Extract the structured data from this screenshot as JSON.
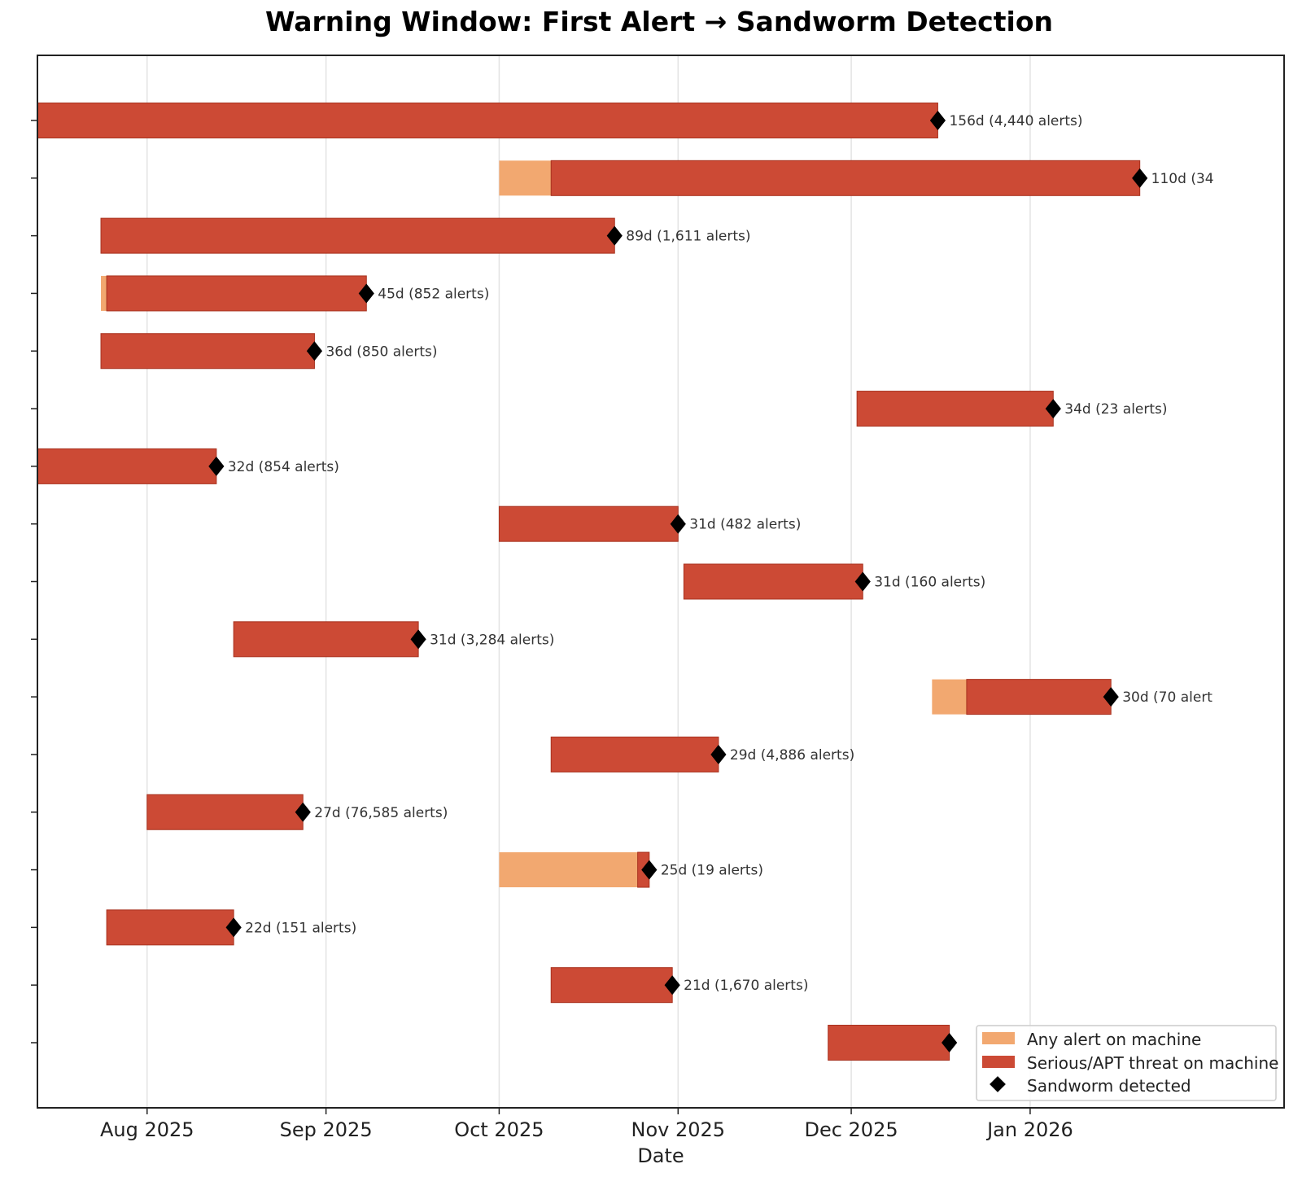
{
  "chart_data": {
    "type": "gantt",
    "title": "Warning Window: First Alert → Sandworm Detection",
    "xlabel": "Date",
    "ylabel": "",
    "xlim": [
      "2025-07-13",
      "2026-02-14"
    ],
    "x_ticks": [
      {
        "date": "2025-08-01",
        "label": "Aug 2025"
      },
      {
        "date": "2025-09-01",
        "label": "Sep 2025"
      },
      {
        "date": "2025-10-01",
        "label": "Oct 2025"
      },
      {
        "date": "2025-11-01",
        "label": "Nov 2025"
      },
      {
        "date": "2025-12-01",
        "label": "Dec 2025"
      },
      {
        "date": "2026-01-01",
        "label": "Jan 2026"
      }
    ],
    "grid": "vertical",
    "legend_position": "bottom-right",
    "colors": {
      "any_alert": "#F2A870",
      "serious": "#CC4A35",
      "detected": "#000000",
      "bar_edge": "#A8321F"
    },
    "legend": [
      {
        "key": "any_alert",
        "label": "Any alert on machine"
      },
      {
        "key": "serious",
        "label": "Serious/APT threat on machine"
      },
      {
        "key": "detected",
        "label": "Sandworm detected"
      }
    ],
    "rows": [
      {
        "any_start": "2025-07-13",
        "serious_start": "2025-07-13",
        "detected": "2025-12-16",
        "label": "156d  (4,440 alerts)"
      },
      {
        "any_start": "2025-10-01",
        "serious_start": "2025-10-10",
        "detected": "2026-01-20",
        "label": "110d  (34"
      },
      {
        "any_start": "2025-07-24",
        "serious_start": "2025-07-24",
        "detected": "2025-10-21",
        "label": "89d  (1,611 alerts)"
      },
      {
        "any_start": "2025-07-24",
        "serious_start": "2025-07-25",
        "detected": "2025-09-08",
        "label": "45d  (852 alerts)"
      },
      {
        "any_start": "2025-07-24",
        "serious_start": "2025-07-24",
        "detected": "2025-08-30",
        "label": "36d  (850 alerts)"
      },
      {
        "any_start": "2025-12-02",
        "serious_start": "2025-12-02",
        "detected": "2026-01-05",
        "label": "34d  (23 alerts)"
      },
      {
        "any_start": "2025-07-13",
        "serious_start": "2025-07-13",
        "detected": "2025-08-13",
        "label": "32d  (854 alerts)"
      },
      {
        "any_start": "2025-10-01",
        "serious_start": "2025-10-01",
        "detected": "2025-11-01",
        "label": "31d  (482 alerts)"
      },
      {
        "any_start": "2025-11-02",
        "serious_start": "2025-11-02",
        "detected": "2025-12-03",
        "label": "31d  (160 alerts)"
      },
      {
        "any_start": "2025-08-16",
        "serious_start": "2025-08-16",
        "detected": "2025-09-17",
        "label": "31d  (3,284 alerts)"
      },
      {
        "any_start": "2025-12-15",
        "serious_start": "2025-12-21",
        "detected": "2026-01-15",
        "label": "30d  (70 alert"
      },
      {
        "any_start": "2025-10-10",
        "serious_start": "2025-10-10",
        "detected": "2025-11-08",
        "label": "29d  (4,886 alerts)"
      },
      {
        "any_start": "2025-08-01",
        "serious_start": "2025-08-01",
        "detected": "2025-08-28",
        "label": "27d  (76,585 alerts)"
      },
      {
        "any_start": "2025-10-01",
        "serious_start": "2025-10-25",
        "detected": "2025-10-27",
        "label": "25d  (19 alerts)"
      },
      {
        "any_start": "2025-07-25",
        "serious_start": "2025-07-25",
        "detected": "2025-08-16",
        "label": "22d  (151 alerts)"
      },
      {
        "any_start": "2025-10-10",
        "serious_start": "2025-10-10",
        "detected": "2025-10-31",
        "label": "21d  (1,670 alerts)"
      },
      {
        "any_start": "2025-11-27",
        "serious_start": "2025-11-27",
        "detected": "2025-12-18",
        "label": ""
      }
    ]
  }
}
